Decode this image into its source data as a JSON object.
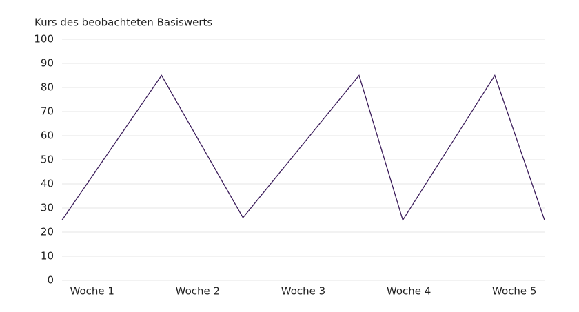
{
  "chart_data": {
    "type": "line",
    "title": "Kurs des beobachteten Basiswerts",
    "x": [
      0,
      6.6,
      12,
      19.7,
      22.6,
      28.7,
      32
    ],
    "series": [
      {
        "color": "#3b1c5a",
        "values": [
          25,
          85,
          26,
          85,
          25,
          85,
          25
        ]
      }
    ],
    "xlim": [
      0,
      32
    ],
    "xticks": [
      {
        "value": 2,
        "label": "Woche 1"
      },
      {
        "value": 9,
        "label": "Woche 2"
      },
      {
        "value": 16,
        "label": "Woche 3"
      },
      {
        "value": 23,
        "label": "Woche 4"
      },
      {
        "value": 30,
        "label": "Woche 5"
      }
    ],
    "ylim": [
      0,
      100
    ],
    "yticks": [
      0,
      10,
      20,
      30,
      40,
      50,
      60,
      70,
      80,
      90,
      100
    ],
    "grid": true
  }
}
